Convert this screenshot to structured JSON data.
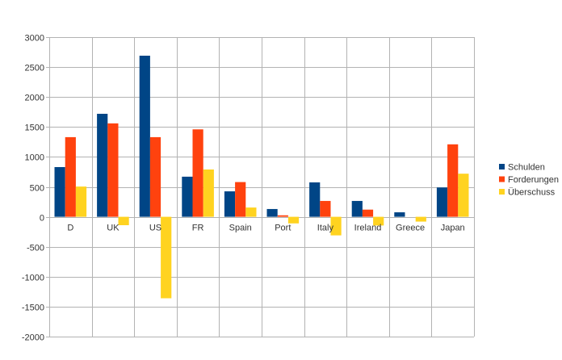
{
  "chart_data": {
    "type": "bar",
    "categories": [
      "D",
      "UK",
      "US",
      "FR",
      "Spain",
      "Port",
      "Italy",
      "Ireland",
      "Greece",
      "Japan"
    ],
    "series": [
      {
        "name": "Schulden",
        "color": "#004586",
        "values": [
          830,
          1720,
          2690,
          670,
          425,
          130,
          575,
          265,
          75,
          490
        ]
      },
      {
        "name": "Forderungen",
        "color": "#ff420e",
        "values": [
          1330,
          1560,
          1330,
          1460,
          580,
          25,
          265,
          120,
          0,
          1210
        ]
      },
      {
        "name": "Überschuss",
        "color": "#ffd320",
        "values": [
          505,
          -140,
          -1360,
          790,
          155,
          -110,
          -310,
          -145,
          -80,
          720
        ]
      }
    ],
    "yticks": [
      "3000",
      "2500",
      "2000",
      "1500",
      "1000",
      "500",
      "0",
      "-500",
      "-1000",
      "-1500",
      "-2000"
    ],
    "ylim": [
      -2000,
      3000
    ],
    "grid": true,
    "legend_position": "right"
  }
}
